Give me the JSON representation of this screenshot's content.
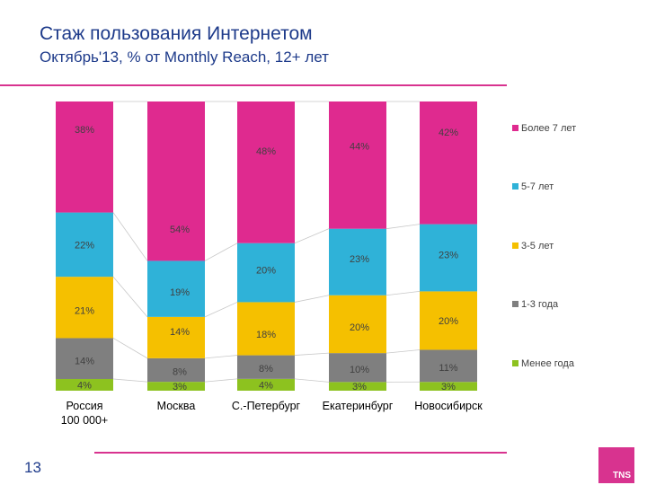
{
  "slide": {
    "title": "Стаж пользования Интернетом",
    "subtitle": "Октябрь'13, % от Monthly Reach, 12+ лет",
    "page_number": "13",
    "logo_text": "TNS"
  },
  "chart_data": {
    "type": "bar",
    "stacked": true,
    "connector_lines": true,
    "categories": [
      "Россия 100 000+",
      "Москва",
      "С.-Петербург",
      "Екатеринбург",
      "Новосибирск"
    ],
    "series": [
      {
        "name": "Менее года",
        "color": "#8dc21f",
        "values": [
          4,
          3,
          4,
          3,
          3
        ]
      },
      {
        "name": "1-3 года",
        "color": "#7f7f7f",
        "values": [
          14,
          8,
          8,
          10,
          11
        ]
      },
      {
        "name": "3-5 лет",
        "color": "#f5c000",
        "values": [
          21,
          14,
          18,
          20,
          20
        ]
      },
      {
        "name": "5-7 лет",
        "color": "#2fb2d8",
        "values": [
          22,
          19,
          20,
          23,
          23
        ]
      },
      {
        "name": "Более 7 лет",
        "color": "#df2a8f",
        "values": [
          38,
          54,
          48,
          44,
          42
        ]
      }
    ],
    "legend_position": "right"
  }
}
